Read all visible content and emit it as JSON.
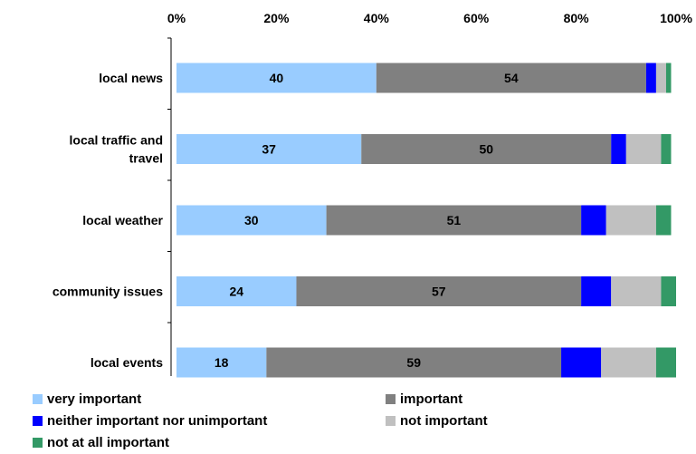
{
  "chart_data": {
    "type": "bar",
    "orientation": "horizontal",
    "stacked": true,
    "percent_stacked": true,
    "title": "",
    "xlabel": "",
    "ylabel": "",
    "xlim": [
      0,
      100
    ],
    "x_ticks": [
      "0%",
      "20%",
      "40%",
      "60%",
      "80%",
      "100%"
    ],
    "x_axis_position": "top",
    "grid": false,
    "legend_position": "bottom",
    "categories": [
      [
        "local news"
      ],
      [
        "local traffic and",
        "travel"
      ],
      [
        "local weather"
      ],
      [
        "community issues"
      ],
      [
        "local events"
      ]
    ],
    "series": [
      {
        "name": "very important",
        "color": "#99CCFF",
        "values": [
          40,
          37,
          30,
          24,
          18
        ],
        "show_labels": true
      },
      {
        "name": "important",
        "color": "#808080",
        "values": [
          54,
          50,
          51,
          57,
          59
        ],
        "show_labels": true
      },
      {
        "name": "neither important nor unimportant",
        "color": "#0000FF",
        "values": [
          2,
          3,
          5,
          6,
          8
        ],
        "show_labels": false
      },
      {
        "name": "not important",
        "color": "#C0C0C0",
        "values": [
          2,
          7,
          10,
          10,
          11
        ],
        "show_labels": false
      },
      {
        "name": "not at all important",
        "color": "#339966",
        "values": [
          1,
          2,
          3,
          3,
          4
        ],
        "show_labels": false
      }
    ]
  }
}
